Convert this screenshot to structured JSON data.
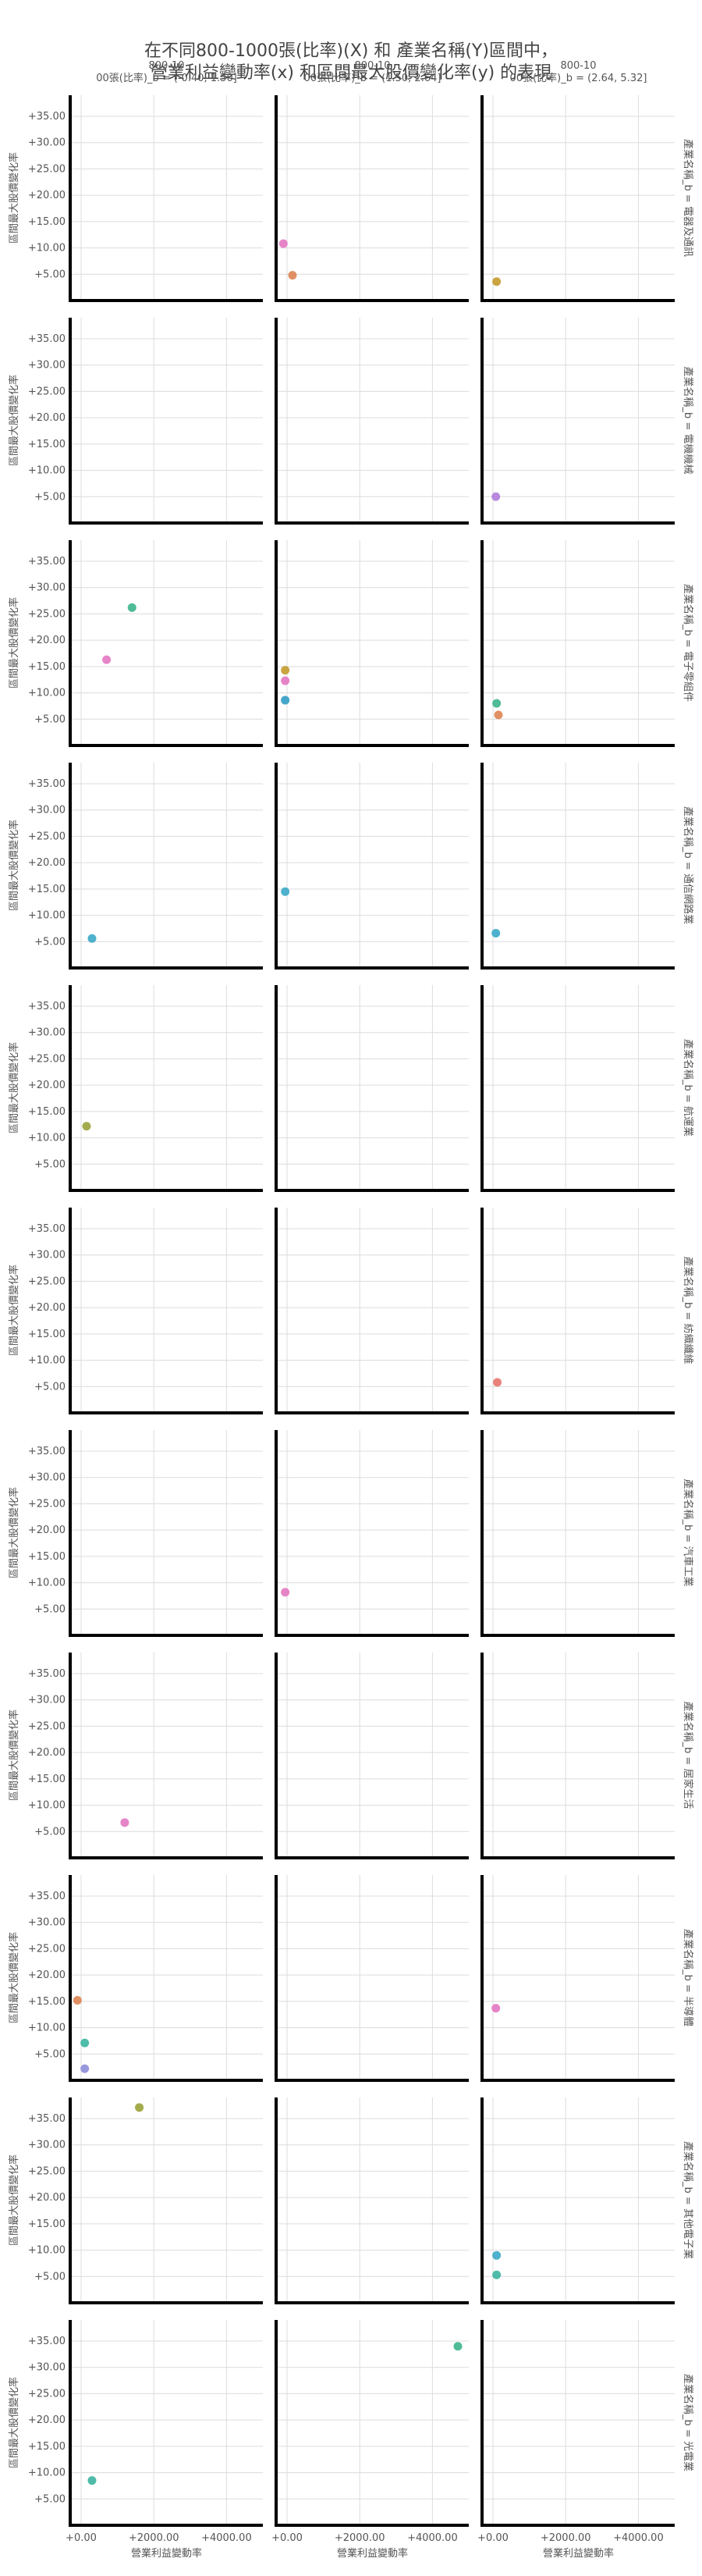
{
  "chart_data": {
    "type": "scatter",
    "title_line1": "在不同800-1000張(比率)(X) 和 產業名稱(Y)區間中，",
    "title_line2": "營業利益變動率(x) 和區間最大股價變化率(y) 的表現",
    "column_titles": [
      [
        "800-10",
        "00張(比率)_b = (-0.40, 1.50]"
      ],
      [
        "800-10",
        "00張(比率)_b = (1.50, 2.64]"
      ],
      [
        "800-10",
        "00張(比率)_b = (2.64, 5.32]"
      ]
    ],
    "row_titles": [
      "產業名稱_b = 電器及通訊",
      "產業名稱_b = 電機機械",
      "產業名稱_b = 電子零組件",
      "產業名稱_b = 通信網路業",
      "產業名稱_b = 航運業",
      "產業名稱_b = 紡織纖維",
      "產業名稱_b = 汽車工業",
      "產業名稱_b = 居家生活",
      "產業名稱_b = 半導體",
      "產業名稱_b = 其他電子業",
      "產業名稱_b = 光電業"
    ],
    "xlabel": "營業利益變動率",
    "ylabel": "區間最大股價變化率",
    "xlim": [
      -300,
      5000
    ],
    "ylim": [
      0,
      39
    ],
    "xticks": [
      0,
      2000,
      4000
    ],
    "xtick_labels": [
      "+0.00",
      "+2000.00",
      "+4000.00"
    ],
    "yticks": [
      5,
      10,
      15,
      20,
      25,
      30,
      35
    ],
    "ytick_labels": [
      "+5.00",
      "+10.00",
      "+15.00",
      "+20.00",
      "+25.00",
      "+30.00",
      "+35.00"
    ],
    "grid": true,
    "points": [
      {
        "row": 0,
        "col": 1,
        "x": -100,
        "y": 10.8,
        "color": "#e377c2"
      },
      {
        "row": 0,
        "col": 1,
        "x": 150,
        "y": 4.8,
        "color": "#dd8452"
      },
      {
        "row": 0,
        "col": 2,
        "x": 100,
        "y": 3.6,
        "color": "#c49a2c"
      },
      {
        "row": 1,
        "col": 2,
        "x": 80,
        "y": 5.0,
        "color": "#b07cda"
      },
      {
        "row": 2,
        "col": 0,
        "x": 1400,
        "y": 26.2,
        "color": "#3cb48c"
      },
      {
        "row": 2,
        "col": 0,
        "x": 700,
        "y": 16.3,
        "color": "#e377c2"
      },
      {
        "row": 2,
        "col": 1,
        "x": -50,
        "y": 14.3,
        "color": "#c49a2c"
      },
      {
        "row": 2,
        "col": 1,
        "x": -50,
        "y": 12.3,
        "color": "#e377c2"
      },
      {
        "row": 2,
        "col": 1,
        "x": -50,
        "y": 8.6,
        "color": "#8c8cd9"
      },
      {
        "row": 2,
        "col": 1,
        "x": -50,
        "y": 8.6,
        "color": "#3ba9c8"
      },
      {
        "row": 2,
        "col": 2,
        "x": 100,
        "y": 8.0,
        "color": "#3cb48c"
      },
      {
        "row": 2,
        "col": 2,
        "x": 150,
        "y": 5.8,
        "color": "#dd8452"
      },
      {
        "row": 3,
        "col": 0,
        "x": 300,
        "y": 5.6,
        "color": "#3ba9c8"
      },
      {
        "row": 3,
        "col": 1,
        "x": -50,
        "y": 14.5,
        "color": "#3ba9c8"
      },
      {
        "row": 3,
        "col": 2,
        "x": 80,
        "y": 6.6,
        "color": "#3ba9c8"
      },
      {
        "row": 4,
        "col": 0,
        "x": 150,
        "y": 12.2,
        "color": "#9aa23a"
      },
      {
        "row": 5,
        "col": 2,
        "x": 120,
        "y": 5.8,
        "color": "#e8746e"
      },
      {
        "row": 6,
        "col": 1,
        "x": -50,
        "y": 8.2,
        "color": "#e377c2"
      },
      {
        "row": 7,
        "col": 0,
        "x": 1200,
        "y": 6.7,
        "color": "#e377c2"
      },
      {
        "row": 8,
        "col": 0,
        "x": -100,
        "y": 15.2,
        "color": "#dd8452"
      },
      {
        "row": 8,
        "col": 0,
        "x": 100,
        "y": 7.1,
        "color": "#3cb4a0"
      },
      {
        "row": 8,
        "col": 0,
        "x": 100,
        "y": 2.2,
        "color": "#8c8cd9"
      },
      {
        "row": 8,
        "col": 2,
        "x": 80,
        "y": 13.7,
        "color": "#e377c2"
      },
      {
        "row": 9,
        "col": 0,
        "x": 1600,
        "y": 37.1,
        "color": "#9aa23a"
      },
      {
        "row": 9,
        "col": 2,
        "x": 100,
        "y": 9.0,
        "color": "#3ba9c8"
      },
      {
        "row": 9,
        "col": 2,
        "x": 100,
        "y": 5.3,
        "color": "#3cb4a0"
      },
      {
        "row": 10,
        "col": 1,
        "x": 4700,
        "y": 34.0,
        "color": "#3cb48c"
      },
      {
        "row": 10,
        "col": 0,
        "x": 300,
        "y": 8.5,
        "color": "#3cb4a0"
      }
    ]
  }
}
